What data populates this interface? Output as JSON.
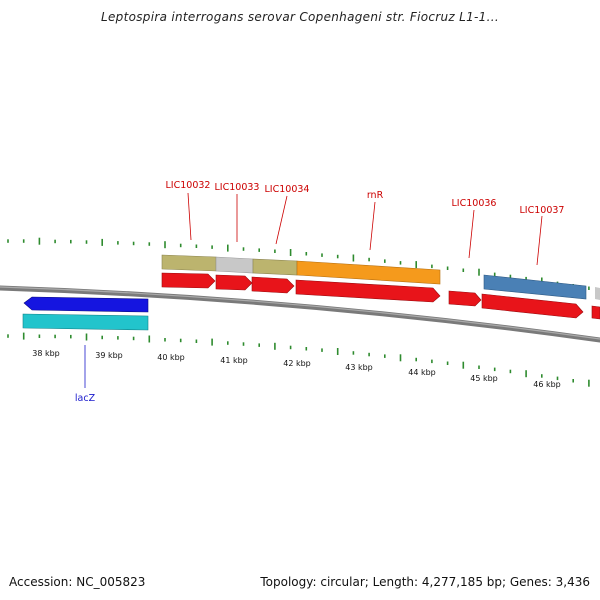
{
  "title": "Leptospira interrogans serovar Copenhageni str. Fiocruz L1-1...",
  "accession_text": "Accession: NC_005823",
  "summary_text": "Topology: circular; Length: 4,277,185 bp; Genes: 3,436",
  "colors": {
    "backbone": "#808080",
    "tick": "#2e8b2e",
    "cds": "#e8141a",
    "gene_label": "#cc0000",
    "lacz_label": "#1a1acc",
    "lacz_fill": "#1515e0",
    "teal": "#22c4cc",
    "olive": "#bcb46e",
    "light_gray": "#c6c6c6",
    "orange": "#f59a1c",
    "steel_blue": "#4a80b5"
  },
  "scale_labels": [
    "38 kbp",
    "39 kbp",
    "40 kbp",
    "41 kbp",
    "42 kbp",
    "43 kbp",
    "44 kbp",
    "45 kbp",
    "46 kbp"
  ],
  "gene_labels": [
    "LIC10032",
    "LIC10033",
    "LIC10034",
    "rnR",
    "LIC10036",
    "LIC10037"
  ],
  "lacz_label": "lacZ"
}
